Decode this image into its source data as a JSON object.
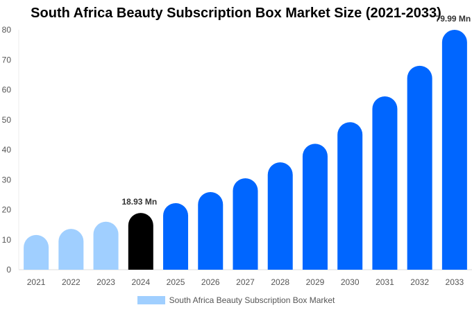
{
  "chart_data": {
    "type": "bar",
    "title": "South Africa Beauty Subscription Box Market Size (2021-2033)",
    "categories": [
      "2021",
      "2022",
      "2023",
      "2024",
      "2025",
      "2026",
      "2027",
      "2028",
      "2029",
      "2030",
      "2031",
      "2032",
      "2033"
    ],
    "series": [
      {
        "name": "South Africa Beauty Subscription Box Market",
        "values": [
          11.6,
          13.6,
          16.0,
          18.93,
          22.2,
          25.9,
          30.5,
          35.8,
          42.0,
          49.2,
          57.8,
          68.0,
          79.99
        ]
      }
    ],
    "data_labels": [
      {
        "category": "2024",
        "text": "18.93 Mn"
      },
      {
        "category": "2033",
        "text": "79.99 Mn"
      }
    ],
    "colors": {
      "historical": "#a0cfff",
      "current": "#000000",
      "forecast": "#0066ff"
    },
    "bar_color_groups": [
      "historical",
      "historical",
      "historical",
      "current",
      "forecast",
      "forecast",
      "forecast",
      "forecast",
      "forecast",
      "forecast",
      "forecast",
      "forecast",
      "forecast"
    ],
    "yticks": [
      0,
      10,
      20,
      30,
      40,
      50,
      60,
      70,
      80
    ],
    "ylim": [
      0,
      80
    ],
    "xlabel": "",
    "ylabel": "",
    "grid": false,
    "legend_position": "bottom"
  }
}
